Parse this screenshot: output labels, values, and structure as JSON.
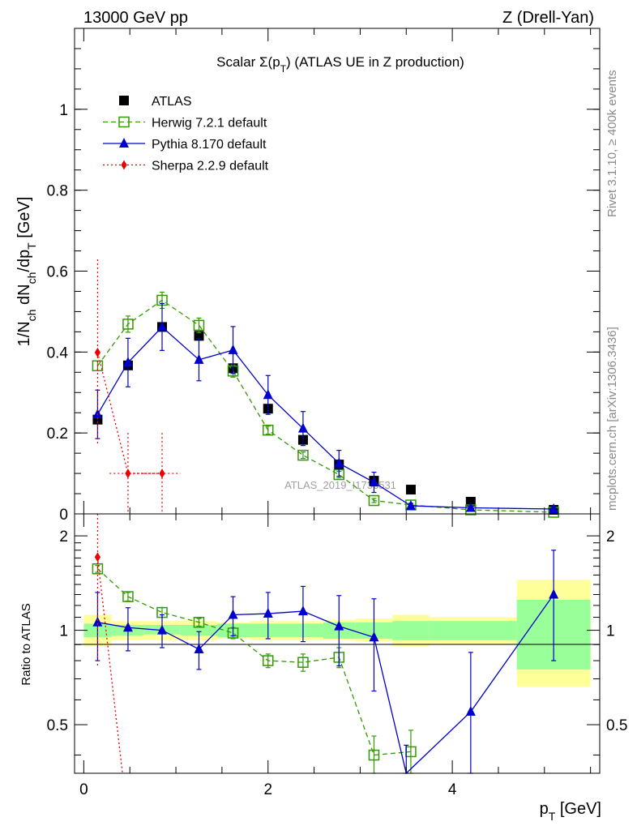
{
  "header": {
    "left": "13000 GeV pp",
    "right": "Z (Drell-Yan)"
  },
  "side_labels": {
    "rivet": "Rivet 3.1.10, ≥ 400k events",
    "mcplots": "mcplots.cern.ch [arXiv:1306.3436]"
  },
  "watermark": "ATLAS_2019_I1736531",
  "chart_data": [
    {
      "type": "line",
      "panel": "main",
      "title": "Scalar Σ(p_T) (ATLAS UE in Z production)",
      "xlabel": "p_T [GeV]",
      "ylabel": "1/N_ch dN_ch/dp_T [GeV]",
      "xlim": [
        -0.1,
        5.6
      ],
      "ylim": [
        0,
        1.2
      ],
      "yticks": [
        0,
        0.2,
        0.4,
        0.6,
        0.8,
        1
      ],
      "ytick_labels": [
        "0",
        "0.2",
        "0.4",
        "0.6",
        "0.8",
        "1"
      ],
      "legend_position": "top-left",
      "series": [
        {
          "name": "ATLAS",
          "color": "#000000",
          "marker": "square",
          "line": "none",
          "x": [
            0.15,
            0.48,
            0.85,
            1.25,
            1.62,
            2.0,
            2.38,
            2.77,
            3.15,
            3.55,
            4.2,
            5.1
          ],
          "y": [
            0.233,
            0.367,
            0.462,
            0.44,
            0.36,
            0.26,
            0.183,
            0.122,
            0.082,
            0.06,
            0.03,
            0.01
          ]
        },
        {
          "name": "Herwig 7.2.1 default",
          "color": "#339900",
          "marker": "open-square",
          "line": "dashed",
          "x": [
            0.15,
            0.48,
            0.85,
            1.25,
            1.62,
            2.0,
            2.38,
            2.77,
            3.15,
            3.55,
            4.2,
            5.1
          ],
          "y": [
            0.366,
            0.469,
            0.528,
            0.466,
            0.353,
            0.207,
            0.145,
            0.097,
            0.033,
            0.022,
            0.01,
            0.004
          ],
          "yerr": [
            0.012,
            0.02,
            0.02,
            0.018,
            0.015,
            0.01,
            0.008,
            0.008,
            0.005,
            0.004,
            0.002,
            0.001
          ]
        },
        {
          "name": "Pythia 8.170 default",
          "color": "#0000cc",
          "marker": "triangle",
          "line": "solid",
          "x": [
            0.15,
            0.48,
            0.85,
            1.25,
            1.62,
            2.0,
            2.38,
            2.77,
            3.15,
            3.55,
            4.2,
            5.1
          ],
          "y": [
            0.246,
            0.374,
            0.462,
            0.381,
            0.405,
            0.294,
            0.211,
            0.125,
            0.078,
            0.02,
            0.015,
            0.012
          ],
          "yerr": [
            0.06,
            0.06,
            0.058,
            0.052,
            0.058,
            0.048,
            0.042,
            0.032,
            0.025,
            0.006,
            0.004,
            0.003
          ]
        },
        {
          "name": "Sherpa 2.2.9 default",
          "color": "#ee0000",
          "marker": "diamond",
          "line": "dotted",
          "x": [
            0.15,
            0.48,
            0.85
          ],
          "y": [
            0.399,
            0.1,
            0.1
          ],
          "yerr": [
            0.23,
            0.1,
            0.1
          ],
          "xerr": [
            0.0,
            0.2,
            0.2
          ]
        }
      ]
    },
    {
      "type": "line",
      "panel": "ratio",
      "ylabel": "Ratio to ATLAS",
      "xlabel": "p_T [GeV]",
      "xlim": [
        -0.1,
        5.6
      ],
      "ylim": [
        0.35,
        2.35
      ],
      "yticks": [
        0.5,
        1,
        2
      ],
      "ytick_labels": [
        "0.5",
        "1",
        "2"
      ],
      "xticks": [
        0,
        2,
        4
      ],
      "xtick_labels": [
        "0",
        "2",
        "4"
      ],
      "uncertainty_bands": {
        "edges": [
          -0.0,
          0.3,
          0.65,
          1.05,
          1.45,
          1.8,
          2.2,
          2.6,
          2.95,
          3.35,
          3.75,
          4.7,
          5.5
        ],
        "stat_low": [
          0.95,
          0.96,
          0.97,
          0.96,
          0.95,
          0.95,
          0.95,
          0.94,
          0.94,
          0.93,
          0.93,
          0.75
        ],
        "stat_high": [
          1.05,
          1.04,
          1.04,
          1.04,
          1.05,
          1.05,
          1.05,
          1.06,
          1.06,
          1.07,
          1.07,
          1.25
        ],
        "total_low": [
          0.89,
          0.93,
          0.93,
          0.93,
          0.94,
          0.93,
          0.93,
          0.93,
          0.92,
          0.89,
          0.9,
          0.66
        ],
        "total_high": [
          1.12,
          1.07,
          1.07,
          1.07,
          1.06,
          1.07,
          1.07,
          1.08,
          1.09,
          1.12,
          1.1,
          1.45
        ]
      },
      "series": [
        {
          "name": "Herwig 7.2.1 default",
          "color": "#339900",
          "marker": "open-square",
          "line": "dashed",
          "x": [
            0.15,
            0.48,
            0.85,
            1.25,
            1.62,
            2.0,
            2.38,
            2.77,
            3.15,
            3.55
          ],
          "y": [
            1.57,
            1.28,
            1.14,
            1.06,
            0.98,
            0.8,
            0.79,
            0.82,
            0.4,
            0.41
          ],
          "yerr": [
            0.04,
            0.04,
            0.04,
            0.03,
            0.04,
            0.04,
            0.05,
            0.06,
            0.06,
            0.07
          ]
        },
        {
          "name": "Pythia 8.170 default",
          "color": "#0000cc",
          "marker": "triangle",
          "line": "solid",
          "x": [
            0.15,
            0.48,
            0.85,
            1.25,
            1.62,
            2.0,
            2.38,
            2.77,
            3.15,
            3.5,
            4.2,
            5.1
          ],
          "y": [
            1.06,
            1.02,
            1.0,
            0.87,
            1.12,
            1.13,
            1.15,
            1.03,
            0.95,
            0.33,
            0.55,
            1.3
          ],
          "yerr": [
            0.26,
            0.16,
            0.12,
            0.12,
            0.16,
            0.19,
            0.23,
            0.26,
            0.31,
            0.1,
            0.3,
            0.5
          ]
        },
        {
          "name": "Sherpa 2.2.9 default",
          "color": "#ee0000",
          "marker": "diamond",
          "line": "dotted",
          "x": [
            0.15,
            0.42
          ],
          "y": [
            1.71,
            0.33
          ],
          "yerr": [
            0.95,
            0.0
          ]
        }
      ]
    }
  ]
}
